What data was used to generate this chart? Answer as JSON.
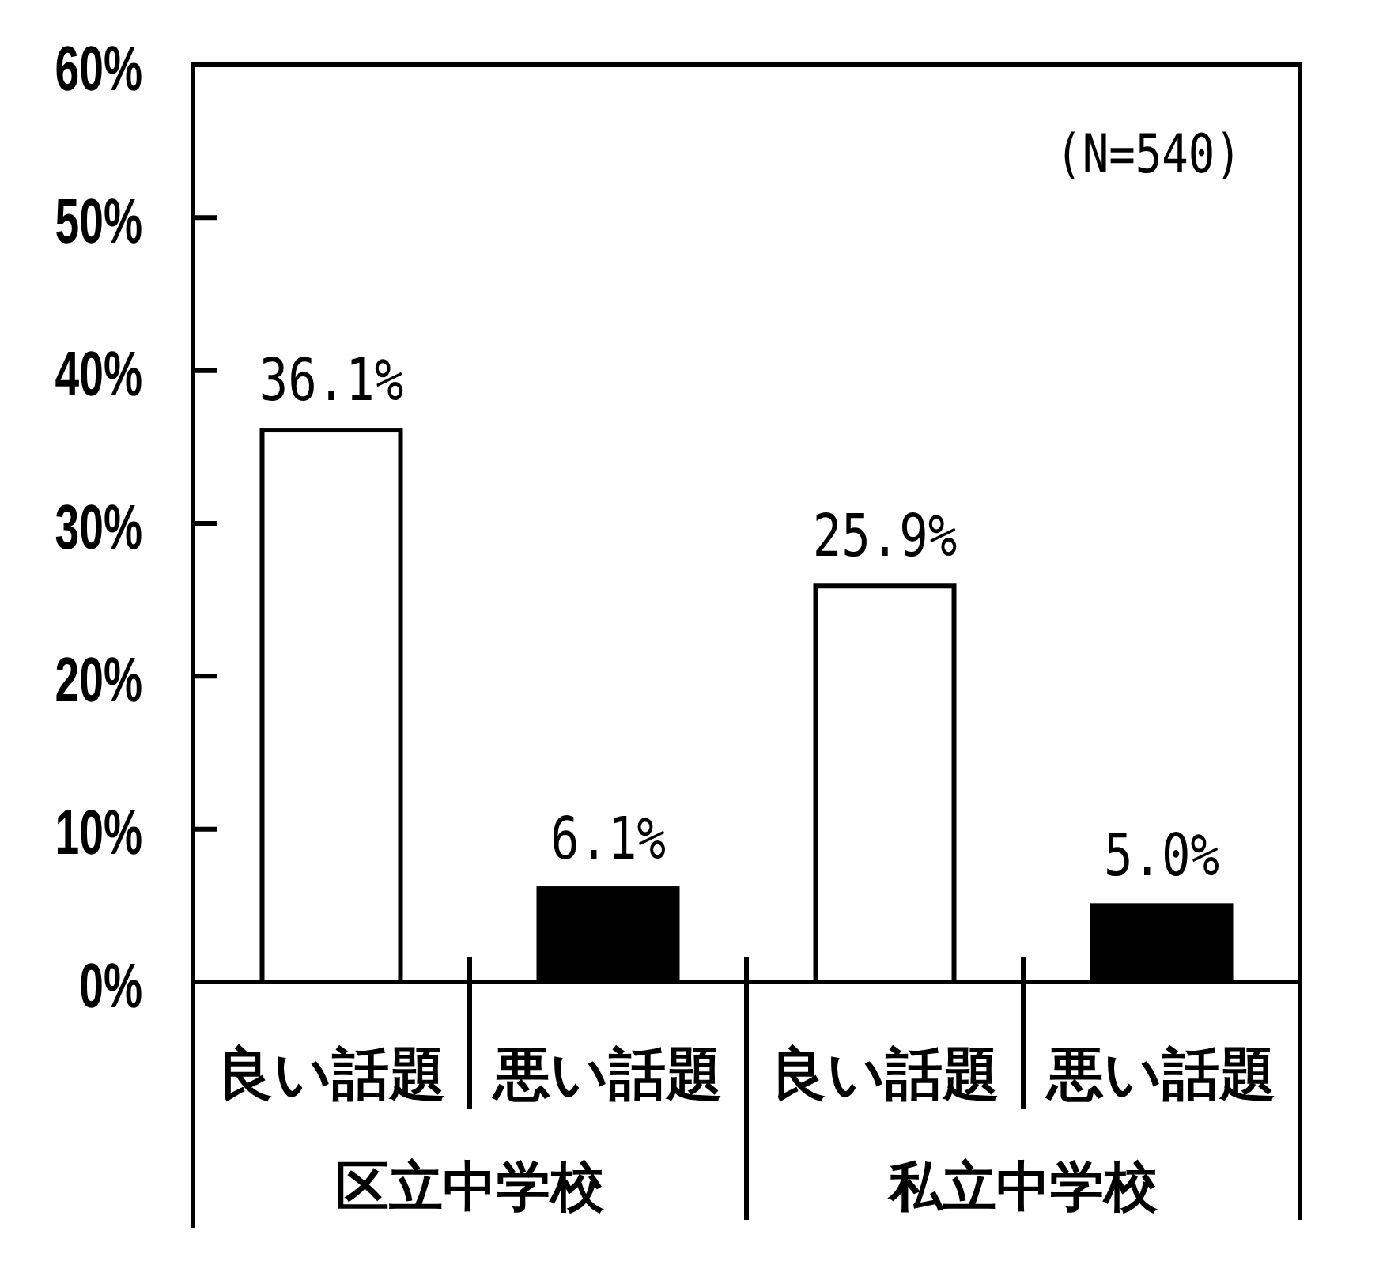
{
  "chart_data": {
    "type": "bar",
    "categories": [
      "良い話題",
      "悪い話題",
      "良い話題",
      "悪い話題"
    ],
    "values": [
      36.1,
      6.1,
      25.9,
      5.0
    ],
    "colors": [
      "#ffffff",
      "#000000",
      "#ffffff",
      "#000000"
    ],
    "value_labels": [
      "36.1%",
      "6.1%",
      "25.9%",
      "5.0%"
    ],
    "ylim": [
      0,
      60
    ],
    "yticks": [
      {
        "value": 0,
        "label": "0%"
      },
      {
        "value": 10,
        "label": "10%"
      },
      {
        "value": 20,
        "label": "20%"
      },
      {
        "value": 30,
        "label": "30%"
      },
      {
        "value": 40,
        "label": "40%"
      },
      {
        "value": 50,
        "label": "50%"
      },
      {
        "value": 60,
        "label": "60%"
      }
    ],
    "annotations": [
      "(N=540)",
      "区立中学校",
      "私立中学校"
    ]
  }
}
